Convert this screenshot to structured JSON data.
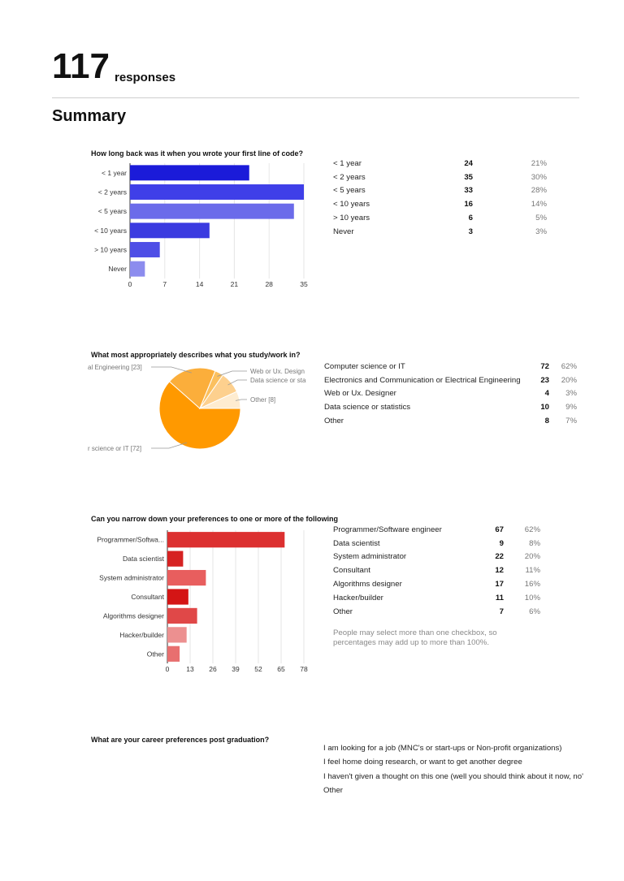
{
  "header": {
    "response_count": "117",
    "response_label": "responses",
    "summary_title": "Summary"
  },
  "q1": {
    "question": "How long back was it when you wrote your first line of code?",
    "rows": [
      {
        "label": "< 1 year",
        "count": "24",
        "percent": "21%"
      },
      {
        "label": "< 2 years",
        "count": "35",
        "percent": "30%"
      },
      {
        "label": "< 5 years",
        "count": "33",
        "percent": "28%"
      },
      {
        "label": "< 10 years",
        "count": "16",
        "percent": "14%"
      },
      {
        "label": "> 10 years",
        "count": "6",
        "percent": "5%"
      },
      {
        "label": "Never",
        "count": "3",
        "percent": "3%"
      }
    ]
  },
  "q2": {
    "question": "What most appropriately describes what you study/work in?",
    "rows": [
      {
        "label": "Computer science or IT",
        "count": "72",
        "percent": "62%"
      },
      {
        "label": "Electronics and Communication or Electrical Engineering",
        "count": "23",
        "percent": "20%"
      },
      {
        "label": "Web or Ux. Designer",
        "count": "4",
        "percent": "3%"
      },
      {
        "label": "Data science or statistics",
        "count": "10",
        "percent": "9%"
      },
      {
        "label": "Other",
        "count": "8",
        "percent": "7%"
      }
    ]
  },
  "q3": {
    "question": "Can you narrow down your preferences to one or more of the following",
    "rows": [
      {
        "label": "Programmer/Software engineer",
        "count": "67",
        "percent": "62%"
      },
      {
        "label": "Data scientist",
        "count": "9",
        "percent": "8%"
      },
      {
        "label": "System administrator",
        "count": "22",
        "percent": "20%"
      },
      {
        "label": "Consultant",
        "count": "12",
        "percent": "11%"
      },
      {
        "label": "Algorithms designer",
        "count": "17",
        "percent": "16%"
      },
      {
        "label": "Hacker/builder",
        "count": "11",
        "percent": "10%"
      },
      {
        "label": "Other",
        "count": "7",
        "percent": "6%"
      }
    ],
    "note": "People may select more than one checkbox, so percentages may add up to more than 100%."
  },
  "q4": {
    "question": "What are your career preferences post graduation?",
    "options": [
      "I am looking for a job (MNC's or start-ups or Non-profit organizations)",
      "I feel home doing research, or want to get another degree",
      "I haven't given a thought on this one (well you should think about it now, no'",
      "Other"
    ]
  },
  "chart_data": [
    {
      "type": "bar",
      "orientation": "horizontal",
      "categories": [
        "< 1 year",
        "< 2 years",
        "< 5 years",
        "< 10 years",
        "> 10 years",
        "Never"
      ],
      "values": [
        24,
        35,
        33,
        16,
        6,
        3
      ],
      "colors": [
        "#1b1bd9",
        "#3f3fe8",
        "#6b6bea",
        "#3b3be0",
        "#4e4ee6",
        "#8c8cee"
      ],
      "xticks": [
        "0",
        "7",
        "14",
        "21",
        "28",
        "35"
      ],
      "xlim": [
        0,
        35
      ]
    },
    {
      "type": "pie",
      "categories": [
        "Computer science or IT",
        "Electronics and Communication or Electrical Engineering",
        "Web or Ux. Designer",
        "Data science or statistics",
        "Other"
      ],
      "values": [
        72,
        23,
        4,
        10,
        8
      ],
      "colors": [
        "#ff9900",
        "#fbae3b",
        "#fbc05f",
        "#fdd08e",
        "#feecd0"
      ],
      "callouts": [
        {
          "text": "al Engineering [23]",
          "slice": 1
        },
        {
          "text": "Web or Ux. Design",
          "slice": 2
        },
        {
          "text": "Data science or sta",
          "slice": 3
        },
        {
          "text": "Other [8]",
          "slice": 4
        },
        {
          "text": "r science or IT [72]",
          "slice": 0
        }
      ]
    },
    {
      "type": "bar",
      "orientation": "horizontal",
      "categories": [
        "Programmer/Softwa...",
        "Data scientist",
        "System administrator",
        "Consultant",
        "Algorithms designer",
        "Hacker/builder",
        "Other"
      ],
      "values": [
        67,
        9,
        22,
        12,
        17,
        11,
        7
      ],
      "colors": [
        "#dc3030",
        "#d62222",
        "#e85e5e",
        "#d41515",
        "#e04848",
        "#ec9090",
        "#e86f6f"
      ],
      "xticks": [
        "0",
        "13",
        "26",
        "39",
        "52",
        "65",
        "78"
      ],
      "xlim": [
        0,
        78
      ]
    }
  ]
}
